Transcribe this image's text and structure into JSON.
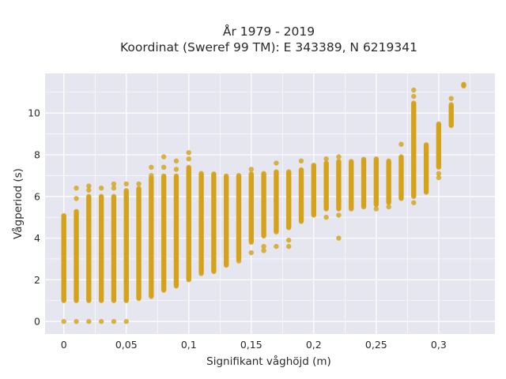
{
  "chart_data": {
    "type": "scatter",
    "title": "År 1979 - 2019",
    "subtitle": "Koordinat (Sweref 99 TM): E 343389, N 6219341",
    "xlabel": "Signifikant våghöjd (m)",
    "ylabel": "Vågperiod (s)",
    "xlim": [
      -0.015,
      0.345
    ],
    "ylim": [
      -0.6,
      11.9
    ],
    "x_ticks": [
      0,
      0.05,
      0.1,
      0.15,
      0.2,
      0.25,
      0.3
    ],
    "x_tick_labels": [
      "0",
      "0,05",
      "0,1",
      "0,15",
      "0,2",
      "0,25",
      "0,3"
    ],
    "y_ticks": [
      0,
      2,
      4,
      6,
      8,
      10
    ],
    "y_tick_labels": [
      "0",
      "2",
      "4",
      "6",
      "8",
      "10"
    ],
    "grid": true,
    "background": "#e6e6f0",
    "grid_color": "#ffffff",
    "marker_color": "#d4a21a",
    "series": [
      {
        "columns": [
          {
            "x": 0.0,
            "ymin": 1.0,
            "ymax": 5.1,
            "outliers": [
              0.0,
              4.2
            ]
          },
          {
            "x": 0.01,
            "ymin": 1.0,
            "ymax": 5.3,
            "outliers": [
              0.0,
              5.9,
              6.4
            ]
          },
          {
            "x": 0.02,
            "ymin": 1.0,
            "ymax": 6.0,
            "outliers": [
              0.0,
              6.3,
              6.5
            ]
          },
          {
            "x": 0.03,
            "ymin": 1.0,
            "ymax": 6.0,
            "outliers": [
              0.0,
              6.4
            ]
          },
          {
            "x": 0.04,
            "ymin": 1.0,
            "ymax": 6.0,
            "outliers": [
              0.0,
              6.4,
              6.6
            ]
          },
          {
            "x": 0.05,
            "ymin": 1.0,
            "ymax": 6.3,
            "outliers": [
              0.0,
              6.6
            ]
          },
          {
            "x": 0.06,
            "ymin": 1.1,
            "ymax": 6.4,
            "outliers": [
              6.6
            ]
          },
          {
            "x": 0.07,
            "ymin": 1.2,
            "ymax": 6.9,
            "outliers": [
              7.0,
              7.4
            ]
          },
          {
            "x": 0.08,
            "ymin": 1.5,
            "ymax": 7.0,
            "outliers": [
              7.4,
              7.9
            ]
          },
          {
            "x": 0.09,
            "ymin": 1.7,
            "ymax": 7.0,
            "outliers": [
              7.3,
              7.7
            ]
          },
          {
            "x": 0.1,
            "ymin": 2.0,
            "ymax": 7.4,
            "outliers": [
              7.8,
              8.1
            ]
          },
          {
            "x": 0.11,
            "ymin": 2.3,
            "ymax": 7.1,
            "outliers": []
          },
          {
            "x": 0.12,
            "ymin": 2.4,
            "ymax": 7.1,
            "outliers": []
          },
          {
            "x": 0.13,
            "ymin": 2.7,
            "ymax": 7.0,
            "outliers": []
          },
          {
            "x": 0.14,
            "ymin": 3.0,
            "ymax": 7.0,
            "outliers": [
              2.9
            ]
          },
          {
            "x": 0.15,
            "ymin": 3.8,
            "ymax": 7.1,
            "outliers": [
              3.3,
              7.3
            ]
          },
          {
            "x": 0.16,
            "ymin": 4.1,
            "ymax": 7.1,
            "outliers": [
              3.4,
              3.6
            ]
          },
          {
            "x": 0.17,
            "ymin": 4.3,
            "ymax": 7.2,
            "outliers": [
              3.6,
              7.6
            ]
          },
          {
            "x": 0.18,
            "ymin": 4.5,
            "ymax": 7.2,
            "outliers": [
              3.6,
              3.9
            ]
          },
          {
            "x": 0.19,
            "ymin": 4.8,
            "ymax": 7.3,
            "outliers": [
              7.7
            ]
          },
          {
            "x": 0.2,
            "ymin": 5.1,
            "ymax": 7.5,
            "outliers": []
          },
          {
            "x": 0.21,
            "ymin": 5.4,
            "ymax": 7.6,
            "outliers": [
              5.0,
              7.8
            ]
          },
          {
            "x": 0.22,
            "ymin": 5.4,
            "ymax": 7.7,
            "outliers": [
              4.0,
              5.1,
              7.9
            ]
          },
          {
            "x": 0.23,
            "ymin": 5.4,
            "ymax": 7.7,
            "outliers": []
          },
          {
            "x": 0.24,
            "ymin": 5.5,
            "ymax": 7.8,
            "outliers": []
          },
          {
            "x": 0.25,
            "ymin": 5.6,
            "ymax": 7.8,
            "outliers": [
              5.4
            ]
          },
          {
            "x": 0.26,
            "ymin": 5.7,
            "ymax": 7.7,
            "outliers": [
              5.5
            ]
          },
          {
            "x": 0.27,
            "ymin": 5.9,
            "ymax": 7.9,
            "outliers": [
              8.5
            ]
          },
          {
            "x": 0.28,
            "ymin": 6.0,
            "ymax": 10.5,
            "outliers": [
              5.7,
              10.8,
              11.1
            ]
          },
          {
            "x": 0.29,
            "ymin": 6.2,
            "ymax": 8.5,
            "outliers": []
          },
          {
            "x": 0.3,
            "ymin": 7.4,
            "ymax": 9.5,
            "outliers": [
              6.9,
              7.1
            ]
          },
          {
            "x": 0.31,
            "ymin": 9.4,
            "ymax": 10.4,
            "outliers": [
              10.7
            ]
          },
          {
            "x": 0.32,
            "ymin": 11.3,
            "ymax": 11.4,
            "outliers": []
          }
        ]
      }
    ]
  }
}
